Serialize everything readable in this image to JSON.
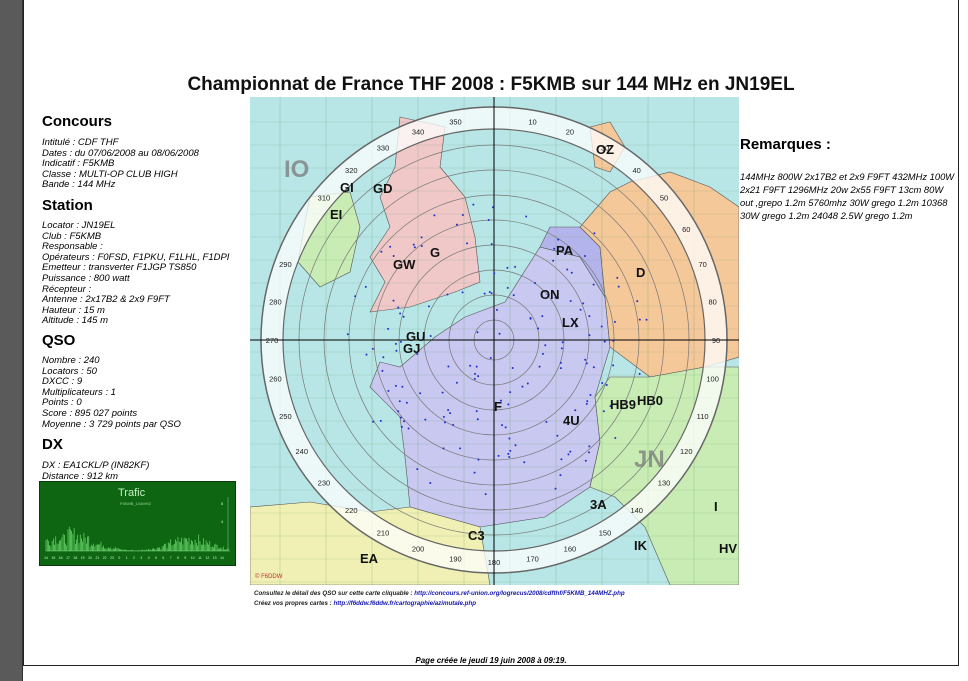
{
  "title": "Championnat de France THF 2008 : F5KMB sur 144 MHz en JN19EL",
  "concours": {
    "heading": "Concours",
    "lines": [
      {
        "label": "Intitulé",
        "value": "CDF THF"
      },
      {
        "label": "Dates",
        "value": "du 07/06/2008 au 08/06/2008"
      },
      {
        "label": "Indicatif",
        "value": "F5KMB"
      },
      {
        "label": "Classe",
        "value": "MULTI-OP CLUB HIGH"
      },
      {
        "label": "Bande",
        "value": "144 MHz"
      }
    ]
  },
  "station": {
    "heading": "Station",
    "lines": [
      {
        "label": "Locator",
        "value": "JN19EL"
      },
      {
        "label": "Club",
        "value": "F5KMB"
      },
      {
        "label": "Responsable",
        "value": ""
      },
      {
        "label": "Opérateurs",
        "value": "F0FSD, F1PKU, F1LHL, F1DPI"
      },
      {
        "label": "Emetteur",
        "value": "transverter F1JGP TS850"
      },
      {
        "label": "Puissance",
        "value": "800 watt"
      },
      {
        "label": "Récepteur",
        "value": ""
      },
      {
        "label": "Antenne",
        "value": "2x17B2 & 2x9 F9FT"
      },
      {
        "label": "Hauteur",
        "value": "15 m"
      },
      {
        "label": "Altitude",
        "value": "145 m"
      }
    ]
  },
  "qso": {
    "heading": "QSO",
    "lines": [
      {
        "label": "Nombre",
        "value": "240"
      },
      {
        "label": "Locators",
        "value": "50"
      },
      {
        "label": "DXCC",
        "value": "9"
      },
      {
        "label": "Multiplicateurs",
        "value": "1"
      },
      {
        "label": "Points",
        "value": "0"
      },
      {
        "label": "Score",
        "value": "895 027 points"
      },
      {
        "label": "Moyenne",
        "value": "3 729 points par QSO"
      }
    ]
  },
  "dx": {
    "heading": "DX",
    "lines": [
      {
        "label": "DX",
        "value": "EA1CKL/P (IN82KF)"
      },
      {
        "label": "Distance",
        "value": "912 km"
      }
    ]
  },
  "trafic": {
    "title": "Trafic",
    "subtitle": "F5KMB_144MHZ",
    "hours": [
      "14",
      "15",
      "16",
      "17",
      "18",
      "19",
      "20",
      "21",
      "22",
      "23",
      "0",
      "1",
      "2",
      "3",
      "4",
      "5",
      "6",
      "7",
      "8",
      "9",
      "10",
      "11",
      "12",
      "13",
      "14"
    ],
    "activity": [
      0.35,
      0.45,
      0.4,
      0.55,
      0.5,
      0.42,
      0.3,
      0.22,
      0.15,
      0.1,
      0.05,
      0.03,
      0.02,
      0.04,
      0.08,
      0.12,
      0.2,
      0.28,
      0.35,
      0.4,
      0.38,
      0.3,
      0.25,
      0.18,
      0.1
    ],
    "y_ticks": [
      "8",
      "4"
    ]
  },
  "remarques": {
    "heading": "Remarques :",
    "text": "144MHz 800W 2x17B2 et 2x9 F9FT 432MHz 100W 2x21 F9FT 1296MHz 20w 2x55 F9FT 13cm 80W out ,grepo 1.2m 5760mhz 30W grego 1.2m 10368 30W grego 1.2m 24048 2.5W grego 1.2m"
  },
  "map": {
    "azimuth_labels": [
      "350",
      "340",
      "330",
      "320",
      "310",
      "290",
      "280",
      "270",
      "260",
      "250",
      "240",
      "230",
      "220",
      "210",
      "200",
      "190",
      "180",
      "170",
      "160",
      "150",
      "140",
      "130",
      "120",
      "110",
      "100",
      "90",
      "80",
      "70",
      "60",
      "50",
      "40",
      "30",
      "20",
      "10"
    ],
    "square_labels": [
      "IO",
      "JN"
    ],
    "country_labels": [
      "GI",
      "GD",
      "EI",
      "GW",
      "G",
      "PA",
      "ON",
      "LX",
      "D",
      "OZ",
      "F",
      "HB9",
      "HB0",
      "4U",
      "3A",
      "C3",
      "EA",
      "IK",
      "I",
      "HV",
      "GU",
      "GJ"
    ],
    "copyright": "© F6DDW"
  },
  "links": {
    "line1_prefix": "Consultez le détail des QSO sur cette carte cliquable : ",
    "line1_url": "http://concours.ref-union.org/logrecus/2008/cdfthf/F5KMB_144MHZ.php",
    "line2_prefix": "Créez vos propres cartes : ",
    "line2_url": "http://f6ddw.f6ddw.fr/cartographie/azimutale.php"
  },
  "footer": "Page créée le jeudi 19 juin 2008 à 09:19.",
  "colors": {
    "sea": "#b8e6e6",
    "france": "#c8c8f0",
    "uk": "#f0c8c8",
    "germany": "#f5c89a",
    "benelux": "#b4b4ec",
    "italy": "#c8ecb4",
    "spain": "#f0f0b4",
    "grid_green": "#5a9a5a",
    "trafic_bg": "#0e6612"
  }
}
